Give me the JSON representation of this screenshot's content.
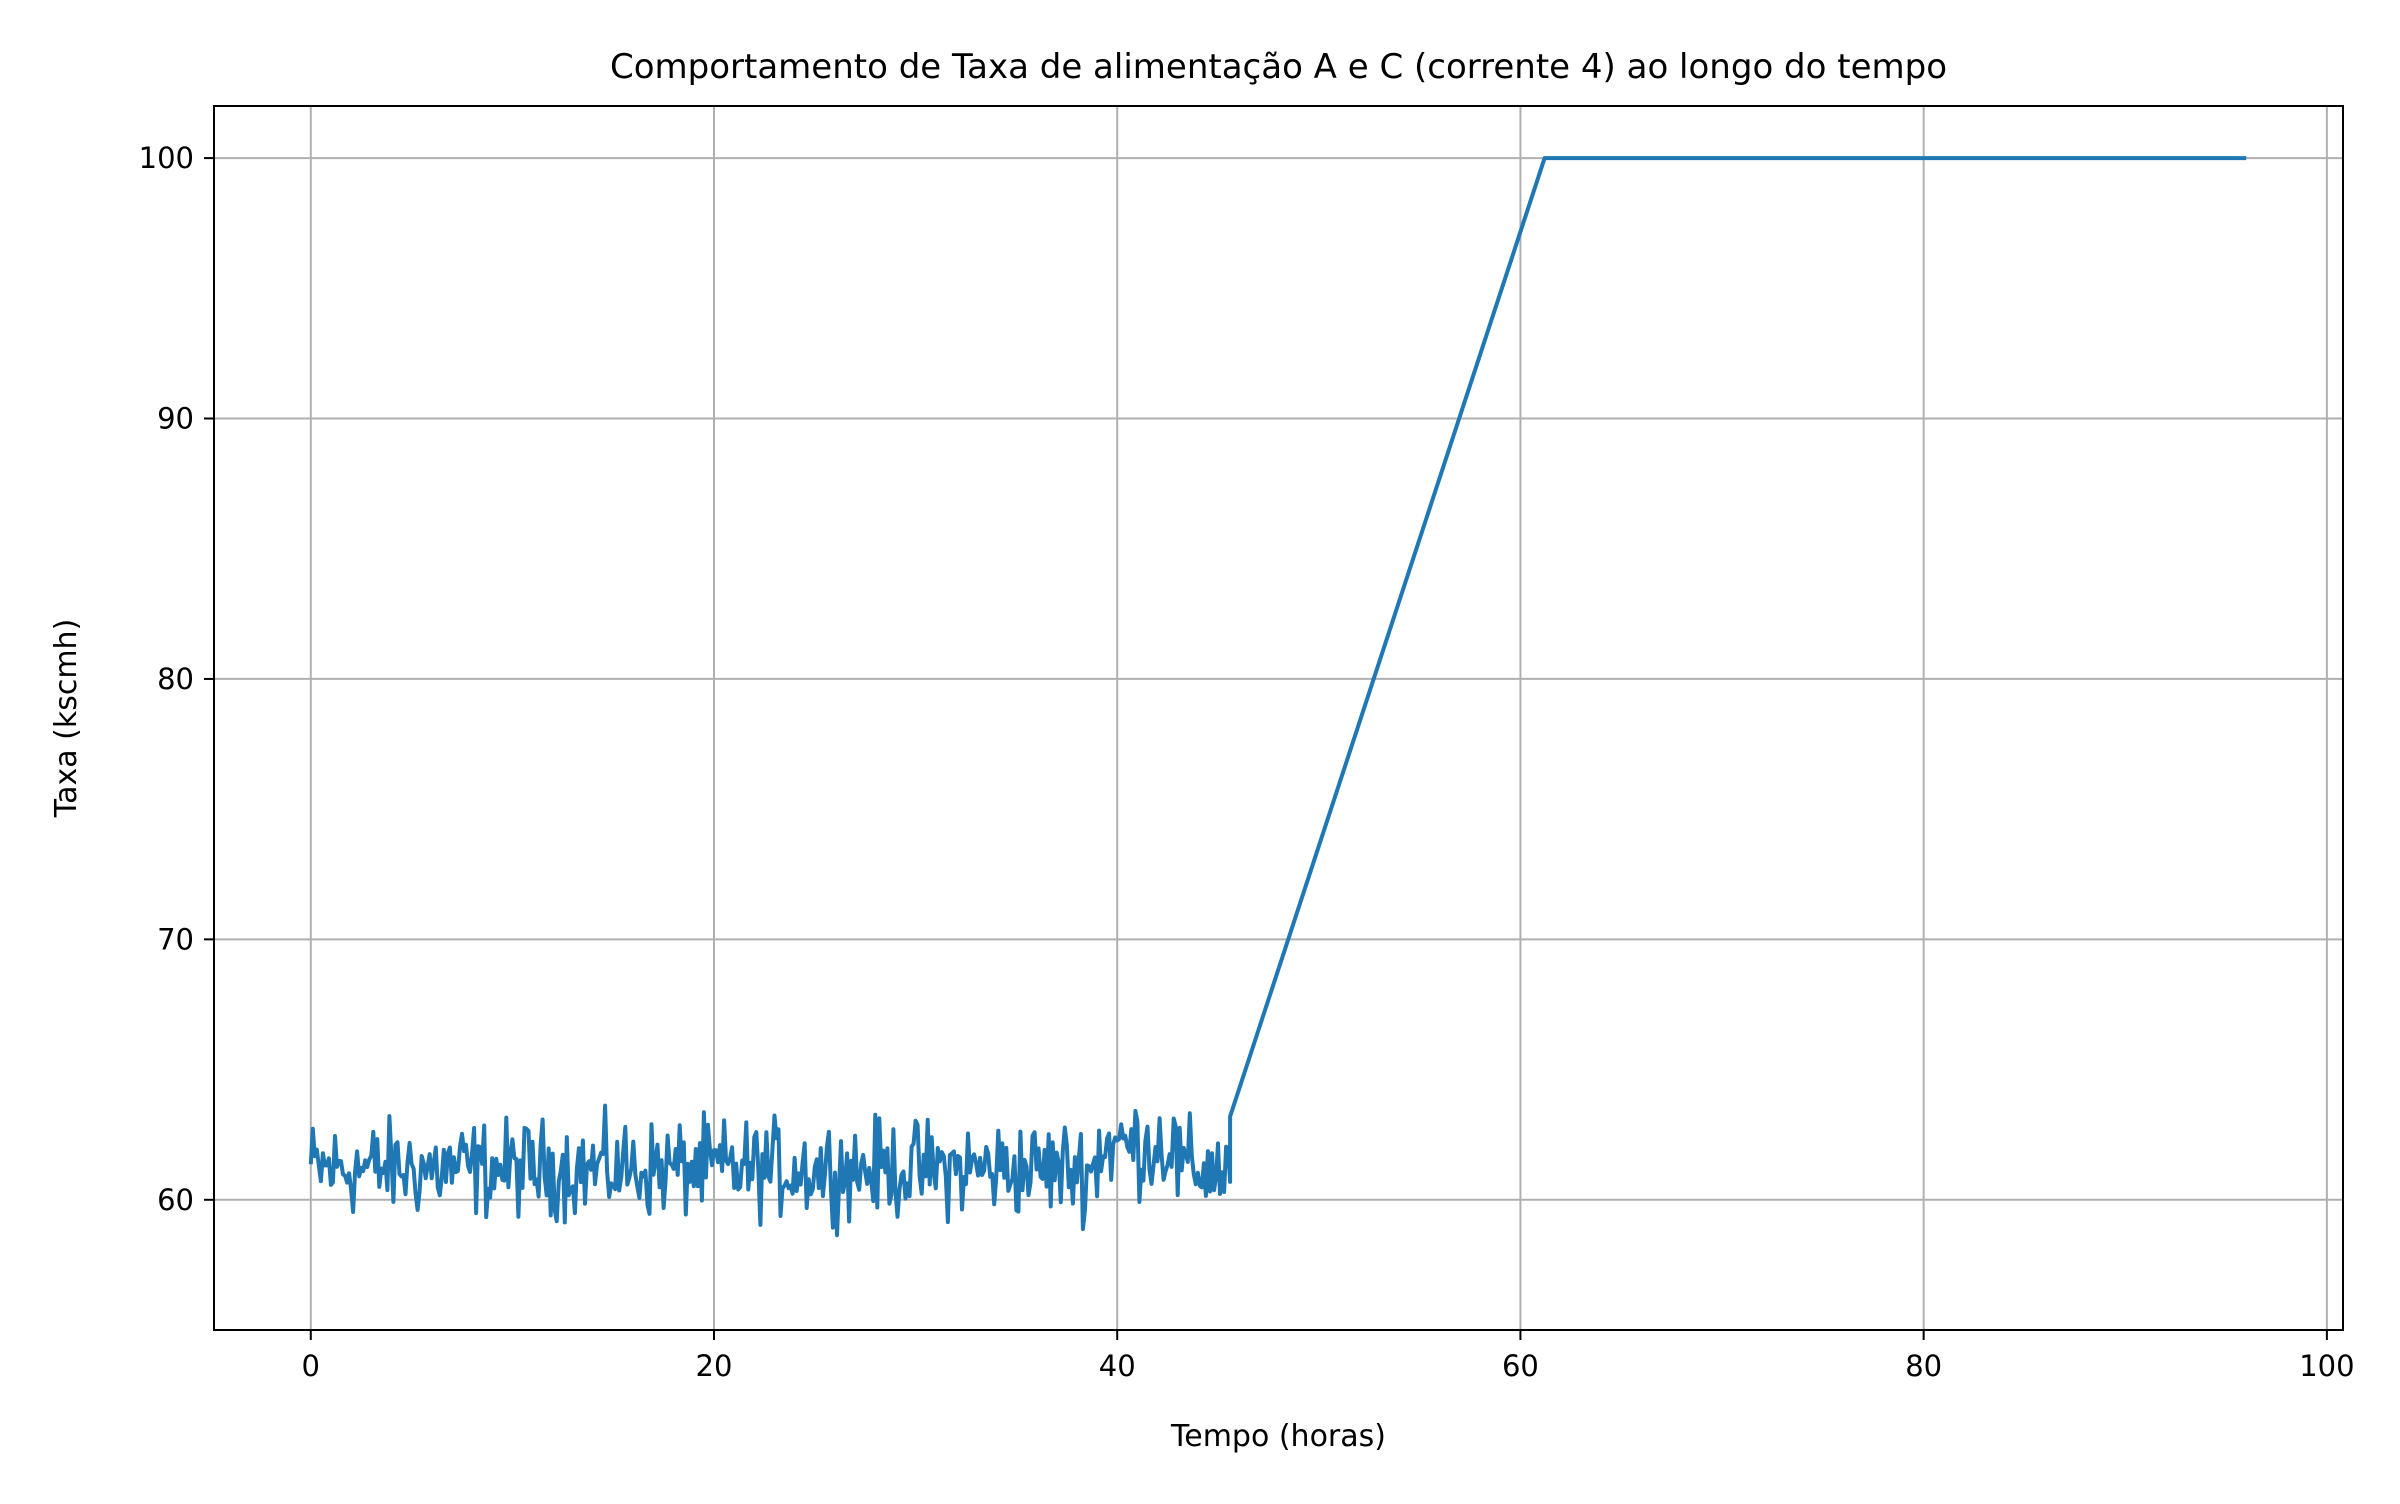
{
  "chart_data": {
    "type": "line",
    "title": "Comportamento de Taxa de alimentação A e C (corrente 4) ao longo do tempo",
    "xlabel": "Tempo (horas)",
    "ylabel": "Taxa (kscmh)",
    "xlim": [
      -4.8,
      100.8
    ],
    "ylim": [
      55,
      102
    ],
    "xticks": [
      0,
      20,
      40,
      60,
      80,
      100
    ],
    "yticks": [
      60,
      70,
      80,
      90,
      100
    ],
    "grid": true,
    "legend": "none",
    "series": [
      {
        "color": "#1f77b4",
        "noisy_segment": {
          "x_start": 0,
          "x_end": 45.6,
          "step_hours": 0.1,
          "mean": 61.2,
          "range_min": 57.4,
          "range_max": 66.4
        },
        "x": [
          45.6,
          61.2,
          96
        ],
        "y": [
          63.2,
          100,
          100
        ]
      }
    ]
  }
}
